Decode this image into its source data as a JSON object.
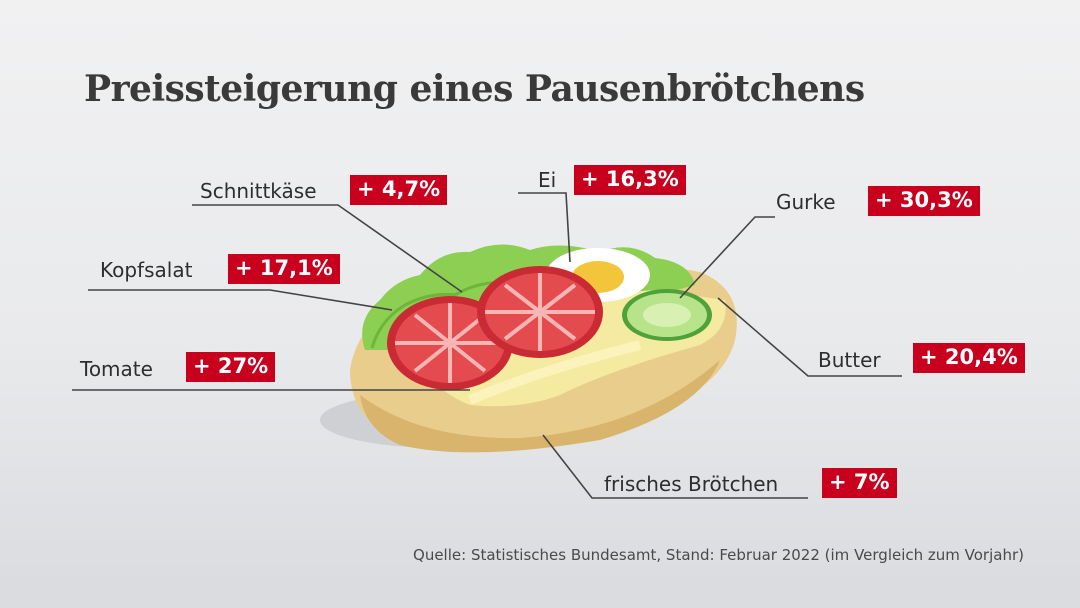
{
  "chart_data": {
    "type": "bar",
    "title": "Preissteigerung eines Pausenbrötchens",
    "categories": [
      "Schnittkäse",
      "Ei",
      "Gurke",
      "Kopfsalat",
      "Tomate",
      "Butter",
      "frisches Brötchen"
    ],
    "values": [
      4.7,
      16.3,
      30.3,
      17.1,
      27,
      20.4,
      7
    ],
    "unit": "%",
    "labels": [
      "+ 4,7%",
      "+ 16,3%",
      "+ 30,3%",
      "+ 17,1%",
      "+ 27%",
      "+ 20,4%",
      "+ 7%"
    ],
    "source": "Quelle: Statistisches Bundesamt, Stand: Februar 2022 (im Vergleich zum Vorjahr)"
  },
  "colors": {
    "badge": "#c8001e",
    "tomato": "#d8333b",
    "cucumber": "#9fd86a",
    "cheese": "#f4eaa0",
    "bread": "#e9cd8c",
    "lettuce": "#8ccf52"
  },
  "icons": [
    "sandwich-illustration"
  ]
}
